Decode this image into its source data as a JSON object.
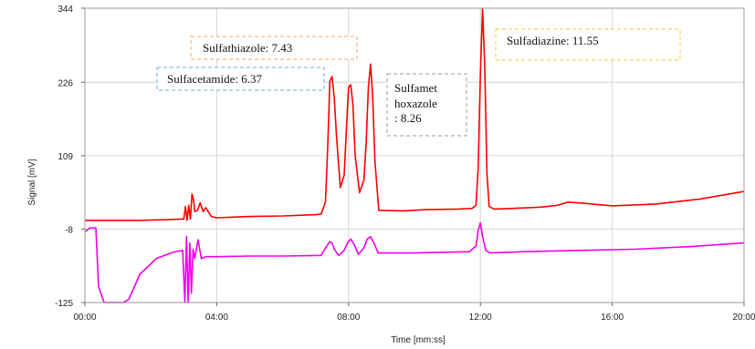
{
  "chart_data": {
    "type": "line",
    "title": "",
    "xlabel": "Time [mm:ss]",
    "ylabel": "Signal [mV]",
    "xlim": [
      0,
      1200
    ],
    "ylim": [
      -125,
      344
    ],
    "grid": true,
    "x_ticks": [
      {
        "v": 0,
        "label": "00:00"
      },
      {
        "v": 240,
        "label": "04:00"
      },
      {
        "v": 480,
        "label": "08:00"
      },
      {
        "v": 720,
        "label": "12:00"
      },
      {
        "v": 960,
        "label": "16:00"
      },
      {
        "v": 1200,
        "label": "20:00"
      }
    ],
    "y_ticks": [
      {
        "v": 344,
        "label": "344"
      },
      {
        "v": 226,
        "label": "226"
      },
      {
        "v": 109,
        "label": "109"
      },
      {
        "v": -8,
        "label": "-8"
      },
      {
        "v": -125,
        "label": "-125"
      }
    ],
    "series": [
      {
        "color": "#ff0000",
        "x": [
          0,
          100,
          150,
          175,
          180,
          183,
          186,
          189,
          192,
          195,
          198,
          200,
          205,
          210,
          215,
          220,
          230,
          240,
          300,
          360,
          390,
          420,
          430,
          438,
          442,
          446,
          450,
          454,
          458,
          465,
          472,
          476,
          480,
          484,
          488,
          492,
          500,
          508,
          512,
          516,
          520,
          524,
          528,
          535,
          580,
          620,
          680,
          705,
          712,
          716,
          720,
          724,
          728,
          732,
          736,
          745,
          780,
          830,
          860,
          880,
          910,
          960,
          1040,
          1120,
          1200
        ],
        "y": [
          6,
          6,
          7,
          8,
          8,
          28,
          6,
          30,
          8,
          48,
          38,
          20,
          22,
          34,
          20,
          26,
          12,
          10,
          12,
          13,
          14,
          15,
          16,
          35,
          120,
          228,
          235,
          200,
          140,
          58,
          78,
          150,
          218,
          222,
          190,
          110,
          50,
          70,
          130,
          218,
          255,
          200,
          100,
          22,
          21,
          23,
          24,
          25,
          30,
          90,
          240,
          344,
          250,
          80,
          28,
          24,
          25,
          27,
          30,
          35,
          33,
          29,
          32,
          40,
          52
        ]
      },
      {
        "color": "#ee00ee",
        "x": [
          0,
          10,
          20,
          25,
          35,
          40,
          50,
          70,
          80,
          100,
          130,
          160,
          178,
          182,
          185,
          188,
          191,
          194,
          197,
          200,
          206,
          212,
          220,
          240,
          300,
          360,
          430,
          438,
          446,
          450,
          454,
          462,
          472,
          478,
          484,
          490,
          498,
          508,
          514,
          520,
          526,
          534,
          600,
          700,
          712,
          716,
          720,
          724,
          730,
          738,
          800,
          900,
          1000,
          1100,
          1200
        ],
        "y": [
          -12,
          -6,
          -6,
          -100,
          -125,
          -125,
          -125,
          -125,
          -120,
          -80,
          -55,
          -45,
          -42,
          -125,
          -20,
          -125,
          -30,
          -110,
          -40,
          -55,
          -25,
          -55,
          -52,
          -52,
          -51,
          -51,
          -50,
          -38,
          -28,
          -30,
          -40,
          -50,
          -42,
          -30,
          -24,
          -32,
          -48,
          -38,
          -24,
          -20,
          -30,
          -46,
          -46,
          -44,
          -35,
          -10,
          2,
          -20,
          -42,
          -46,
          -44,
          -42,
          -40,
          -36,
          -30
        ]
      }
    ],
    "annotations": [
      {
        "text": "Sulfathiazole: 7.43",
        "border": "#f4a460"
      },
      {
        "text": "Sulfacetamide: 6.37",
        "border": "#6fa8dc"
      },
      {
        "text": "Sulfadiazine: 11.55",
        "border": "#f4c542"
      },
      {
        "lines": [
          "Sulfamet",
          "hoxazole",
          ": 8.26"
        ],
        "border": "#9e9e9e"
      }
    ]
  }
}
